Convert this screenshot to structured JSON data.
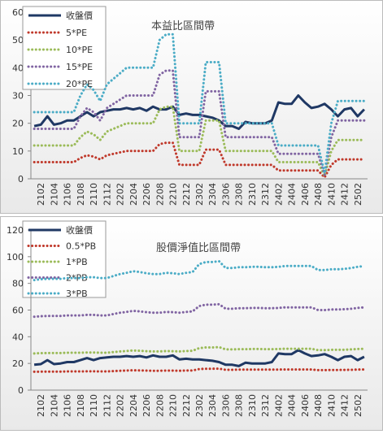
{
  "chart_data": [
    {
      "type": "line",
      "title": "本益比區間帶",
      "categories": [
        null,
        "2102",
        null,
        "2104",
        null,
        "2106",
        null,
        "2108",
        null,
        "2110",
        null,
        "2112",
        null,
        "2202",
        null,
        "2204",
        null,
        "2206",
        null,
        "2208",
        null,
        "2210",
        null,
        "2212",
        null,
        "2302",
        null,
        "2304",
        null,
        "2306",
        null,
        "2308",
        null,
        "2310",
        null,
        "2312",
        null,
        "2402",
        null,
        "2404",
        null,
        "2406",
        null,
        "2408",
        null,
        "2410",
        null,
        "2412",
        null,
        "2502",
        null
      ],
      "ylim": [
        0,
        60
      ],
      "yticks": [
        0,
        10,
        20,
        30,
        40,
        50,
        60
      ],
      "grid": false,
      "legend": "top-left",
      "series": [
        {
          "name": "收盤價",
          "color": "#1f3864",
          "style": "solid",
          "values": [
            19,
            19.5,
            22.5,
            19.5,
            20,
            21,
            21,
            22.5,
            24,
            22.5,
            24,
            24.5,
            25,
            25,
            25.5,
            25,
            25.5,
            24.5,
            26,
            25,
            25,
            26,
            23,
            23.5,
            23,
            23,
            22.5,
            22,
            21,
            19,
            19,
            18,
            20.5,
            20,
            20,
            20,
            21,
            27.5,
            27,
            27,
            30,
            27.5,
            25.5,
            26,
            27,
            25,
            22.5,
            25,
            25.5,
            22.5,
            25
          ]
        },
        {
          "name": "5*PE",
          "color": "#c0392b",
          "style": "dotted",
          "values": [
            6,
            6,
            6,
            6,
            6,
            6,
            6,
            7.5,
            8.5,
            8,
            7,
            8.5,
            9,
            9.5,
            10,
            10,
            10,
            10,
            10,
            12.5,
            13,
            13,
            5,
            5,
            5,
            5,
            10.5,
            10.5,
            10.5,
            5,
            5,
            5,
            5,
            5,
            5,
            5,
            5,
            3,
            3,
            3,
            3,
            3,
            3,
            3,
            0.5,
            5,
            7,
            7,
            7,
            7,
            7
          ]
        },
        {
          "name": "10*PE",
          "color": "#9bbb59",
          "style": "dotted",
          "values": [
            12,
            12,
            12,
            12,
            12,
            12,
            12,
            15,
            17,
            16,
            14,
            17,
            18,
            19,
            20,
            20,
            20,
            20,
            20,
            25,
            26,
            26,
            10,
            10,
            10,
            10,
            21,
            21,
            21,
            10,
            10,
            10,
            10,
            10,
            10,
            10,
            10,
            6,
            6,
            6,
            6,
            6,
            6,
            6,
            1,
            10,
            14,
            14,
            14,
            14,
            14
          ]
        },
        {
          "name": "15*PE",
          "color": "#8064a2",
          "style": "dotted",
          "values": [
            18,
            18,
            18,
            18,
            18,
            18,
            18,
            22.5,
            25.5,
            24,
            21,
            25.5,
            27,
            28.5,
            30,
            30,
            30,
            30,
            30,
            37.5,
            39,
            39,
            15,
            15,
            15,
            15,
            31.5,
            31.5,
            31.5,
            15,
            15,
            15,
            15,
            15,
            15,
            15,
            15,
            9,
            9,
            9,
            9,
            9,
            9,
            9,
            1.5,
            15,
            21,
            21,
            21,
            21,
            21
          ]
        },
        {
          "name": "20*PE",
          "color": "#4bacc6",
          "style": "dotted",
          "values": [
            24,
            24,
            24,
            24,
            24,
            24,
            24,
            30,
            34,
            32,
            28,
            34,
            36,
            38,
            40,
            40,
            40,
            40,
            40,
            50,
            52,
            52,
            20,
            20,
            20,
            20,
            42,
            42,
            42,
            20,
            20,
            20,
            20,
            20,
            20,
            20,
            20,
            12,
            12,
            12,
            12,
            12,
            12,
            12,
            2,
            20,
            28,
            28,
            28,
            28,
            28
          ]
        }
      ]
    },
    {
      "type": "line",
      "title": "股價淨值比區間帶",
      "categories": [
        null,
        "2102",
        null,
        "2104",
        null,
        "2106",
        null,
        "2108",
        null,
        "2110",
        null,
        "2112",
        null,
        "2202",
        null,
        "2204",
        null,
        "2206",
        null,
        "2208",
        null,
        "2210",
        null,
        "2212",
        null,
        "2302",
        null,
        "2304",
        null,
        "2306",
        null,
        "2308",
        null,
        "2310",
        null,
        "2312",
        null,
        "2402",
        null,
        "2404",
        null,
        "2406",
        null,
        "2408",
        null,
        "2410",
        null,
        "2412",
        null,
        "2502",
        null
      ],
      "ylim": [
        0,
        120
      ],
      "yticks": [
        0,
        20,
        40,
        60,
        80,
        100,
        120
      ],
      "grid": false,
      "legend": "top-left",
      "series": [
        {
          "name": "收盤價",
          "color": "#1f3864",
          "style": "solid",
          "values": [
            19,
            19.5,
            22.5,
            19.5,
            20,
            21,
            21,
            22.5,
            24,
            22.5,
            24,
            24.5,
            25,
            25,
            25.5,
            25,
            25.5,
            24.5,
            26,
            25,
            25,
            26,
            23,
            23.5,
            23,
            23,
            22.5,
            22,
            21,
            19,
            19,
            18,
            20.5,
            20,
            20,
            20,
            21,
            27.5,
            27,
            27,
            30,
            27.5,
            25.5,
            26,
            27,
            25,
            22.5,
            25,
            25.5,
            22.5,
            25
          ]
        },
        {
          "name": "0.5*PB",
          "color": "#c0392b",
          "style": "dotted",
          "values": [
            13.75,
            13.85,
            13.9,
            13.9,
            13.9,
            14,
            14,
            14,
            14.1,
            14.1,
            14,
            14,
            14.25,
            14.5,
            14.65,
            14.85,
            14.75,
            14.6,
            14.5,
            14.5,
            14.65,
            14.6,
            14.5,
            14.65,
            14.75,
            15.75,
            16,
            16,
            16.1,
            15.25,
            15.25,
            15.35,
            15.35,
            15.4,
            15.4,
            15.35,
            15.35,
            15.4,
            15.5,
            15.5,
            15.5,
            15.5,
            15.5,
            15,
            15,
            15.1,
            15.1,
            15.15,
            15.25,
            15.4,
            15.5
          ]
        },
        {
          "name": "1*PB",
          "color": "#9bbb59",
          "style": "dotted",
          "values": [
            27.5,
            27.7,
            27.8,
            27.8,
            27.8,
            28,
            28,
            28,
            28.2,
            28.2,
            28,
            28,
            28.5,
            29,
            29.3,
            29.7,
            29.5,
            29.2,
            29,
            29,
            29.3,
            29.2,
            29,
            29.3,
            29.5,
            31.5,
            32,
            32,
            32.2,
            30.5,
            30.5,
            30.7,
            30.7,
            30.8,
            30.8,
            30.7,
            30.7,
            30.8,
            31,
            31,
            31,
            31,
            31,
            30,
            30,
            30.2,
            30.2,
            30.3,
            30.5,
            30.8,
            31
          ]
        },
        {
          "name": "2*PB",
          "color": "#8064a2",
          "style": "dotted",
          "values": [
            55,
            55.4,
            55.6,
            55.6,
            55.6,
            56,
            56,
            56,
            56.4,
            56.4,
            56,
            56,
            57,
            58,
            58.6,
            59.4,
            59,
            58.4,
            58,
            58,
            58.6,
            58.4,
            58,
            58.6,
            59,
            63,
            64,
            64,
            64.4,
            61,
            61,
            61.4,
            61.4,
            61.6,
            61.6,
            61.4,
            61.4,
            61.6,
            62,
            62,
            62,
            62,
            62,
            60,
            60,
            60.4,
            60.4,
            60.6,
            61,
            61.6,
            62
          ]
        },
        {
          "name": "3*PB",
          "color": "#4bacc6",
          "style": "dotted",
          "values": [
            82.5,
            83.1,
            83.4,
            83.4,
            83.4,
            84,
            84,
            84,
            84.6,
            84.6,
            84,
            84,
            85.5,
            87,
            87.9,
            89.1,
            88.5,
            87.6,
            87,
            87,
            87.9,
            87.6,
            87,
            87.9,
            88.5,
            94.5,
            96,
            96,
            96.6,
            91.5,
            91.5,
            92.1,
            92.1,
            92.4,
            92.4,
            92.1,
            92.1,
            92.4,
            93,
            93,
            93,
            93,
            93,
            90,
            90,
            90.6,
            90.6,
            90.9,
            91.5,
            92.4,
            93
          ]
        }
      ]
    }
  ]
}
